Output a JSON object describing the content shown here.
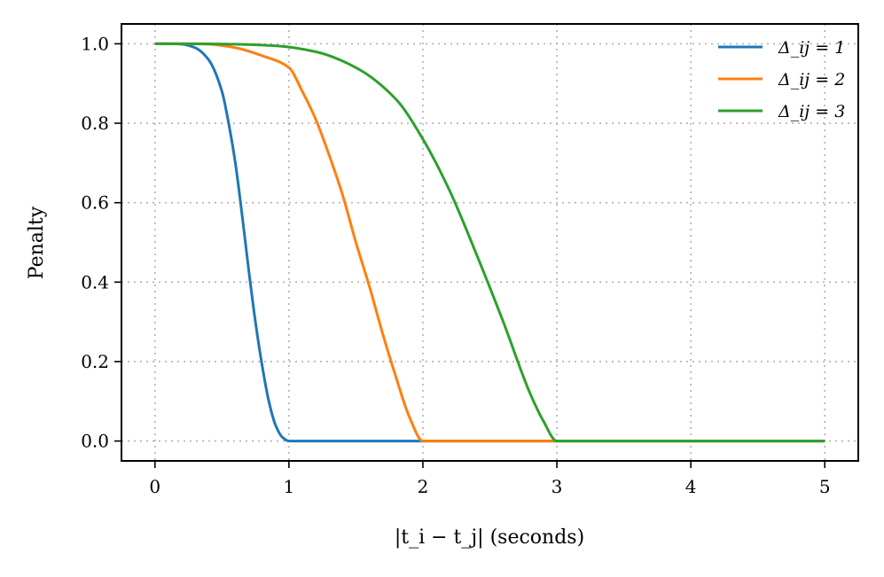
{
  "chart_data": {
    "type": "line",
    "title": "",
    "xlabel": "|t_i − t_j| (seconds)",
    "ylabel": "Penalty",
    "xlim": [
      -0.25,
      5.25
    ],
    "ylim": [
      -0.05,
      1.05
    ],
    "xticks": [
      0,
      1,
      2,
      3,
      4,
      5
    ],
    "xtick_labels": [
      "0",
      "1",
      "2",
      "3",
      "4",
      "5"
    ],
    "yticks": [
      0.0,
      0.2,
      0.4,
      0.6,
      0.8,
      1.0
    ],
    "ytick_labels": [
      "0.0",
      "0.2",
      "0.4",
      "0.6",
      "0.8",
      "1.0"
    ],
    "grid": true,
    "legend_position": "top-right",
    "series": [
      {
        "name": "Δ_ij = 1",
        "color": "#1f77b4",
        "x": [
          0,
          0.1,
          0.2,
          0.3,
          0.4,
          0.5,
          0.55,
          0.6,
          0.65,
          0.7,
          0.75,
          0.8,
          0.85,
          0.9,
          0.95,
          1.0,
          5.0
        ],
        "y": [
          1.0,
          1.0,
          0.999,
          0.99,
          0.96,
          0.88,
          0.8,
          0.7,
          0.57,
          0.43,
          0.3,
          0.19,
          0.1,
          0.04,
          0.01,
          0.0,
          0.0
        ]
      },
      {
        "name": "Δ_ij = 2",
        "color": "#ff7f0e",
        "x": [
          0,
          0.2,
          0.4,
          0.6,
          0.8,
          1.0,
          1.1,
          1.2,
          1.3,
          1.4,
          1.5,
          1.6,
          1.7,
          1.8,
          1.9,
          2.0,
          5.0
        ],
        "y": [
          1.0,
          1.0,
          0.999,
          0.99,
          0.97,
          0.94,
          0.88,
          0.81,
          0.72,
          0.62,
          0.5,
          0.39,
          0.27,
          0.16,
          0.06,
          0.0,
          0.0
        ]
      },
      {
        "name": "Δ_ij = 3",
        "color": "#2ca02c",
        "x": [
          0,
          0.3,
          0.6,
          0.9,
          1.2,
          1.5,
          1.8,
          2.0,
          2.2,
          2.4,
          2.6,
          2.8,
          2.9,
          3.0,
          5.0
        ],
        "y": [
          1.0,
          1.0,
          0.999,
          0.995,
          0.98,
          0.94,
          0.86,
          0.76,
          0.63,
          0.47,
          0.3,
          0.12,
          0.05,
          0.0,
          0.0
        ]
      }
    ]
  }
}
